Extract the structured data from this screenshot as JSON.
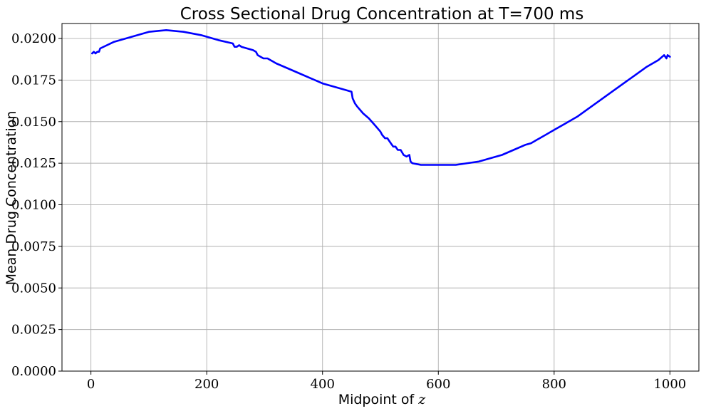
{
  "chart_data": {
    "type": "line",
    "title": "Cross Sectional Drug Concentration at T=700 ms",
    "xlabel_text": "Midpoint of ",
    "xlabel_var": "z",
    "ylabel": "Mean Drug Concentration",
    "xlim": [
      -50,
      1050
    ],
    "ylim": [
      0,
      0.0209
    ],
    "xticks": [
      0,
      200,
      400,
      600,
      800,
      1000
    ],
    "xtick_labels": [
      "0",
      "200",
      "400",
      "600",
      "800",
      "1000"
    ],
    "yticks": [
      0,
      0.0025,
      0.005,
      0.0075,
      0.01,
      0.0125,
      0.015,
      0.0175,
      0.02
    ],
    "ytick_labels": [
      "0.0000",
      "0.0025",
      "0.0050",
      "0.0075",
      "0.0100",
      "0.0125",
      "0.0150",
      "0.0175",
      "0.0200"
    ],
    "grid": true,
    "series": [
      {
        "color": "#0000ff",
        "x": [
          2,
          5,
          8,
          11,
          14,
          16,
          40,
          70,
          100,
          130,
          160,
          190,
          220,
          245,
          248,
          252,
          256,
          260,
          280,
          285,
          288,
          293,
          298,
          305,
          320,
          340,
          360,
          380,
          400,
          420,
          440,
          450,
          452,
          456,
          460,
          470,
          480,
          490,
          500,
          503,
          508,
          512,
          518,
          522,
          526,
          530,
          535,
          540,
          545,
          550,
          552,
          555,
          570,
          590,
          610,
          630,
          650,
          670,
          690,
          710,
          730,
          750,
          760,
          765,
          770,
          775,
          780,
          800,
          820,
          840,
          860,
          880,
          900,
          920,
          940,
          960,
          980,
          990,
          992,
          994,
          996,
          1000
        ],
        "y": [
          0.0191,
          0.0192,
          0.0191,
          0.0192,
          0.0192,
          0.0194,
          0.0198,
          0.0201,
          0.0204,
          0.0205,
          0.0204,
          0.0202,
          0.0199,
          0.0197,
          0.0195,
          0.0195,
          0.0196,
          0.0195,
          0.0193,
          0.0192,
          0.019,
          0.0189,
          0.0188,
          0.0188,
          0.0185,
          0.0182,
          0.0179,
          0.0176,
          0.0173,
          0.0171,
          0.0169,
          0.0168,
          0.0164,
          0.0161,
          0.0159,
          0.0155,
          0.0152,
          0.0148,
          0.0144,
          0.0142,
          0.014,
          0.014,
          0.0137,
          0.0135,
          0.0135,
          0.0133,
          0.0133,
          0.013,
          0.0129,
          0.013,
          0.0126,
          0.0125,
          0.0124,
          0.0124,
          0.0124,
          0.0124,
          0.0125,
          0.0126,
          0.0128,
          0.013,
          0.0133,
          0.0136,
          0.0137,
          0.0138,
          0.0139,
          0.014,
          0.0141,
          0.0145,
          0.0149,
          0.0153,
          0.0158,
          0.0163,
          0.0168,
          0.0173,
          0.0178,
          0.0183,
          0.0187,
          0.019,
          0.0189,
          0.0188,
          0.019,
          0.0189
        ]
      }
    ]
  }
}
